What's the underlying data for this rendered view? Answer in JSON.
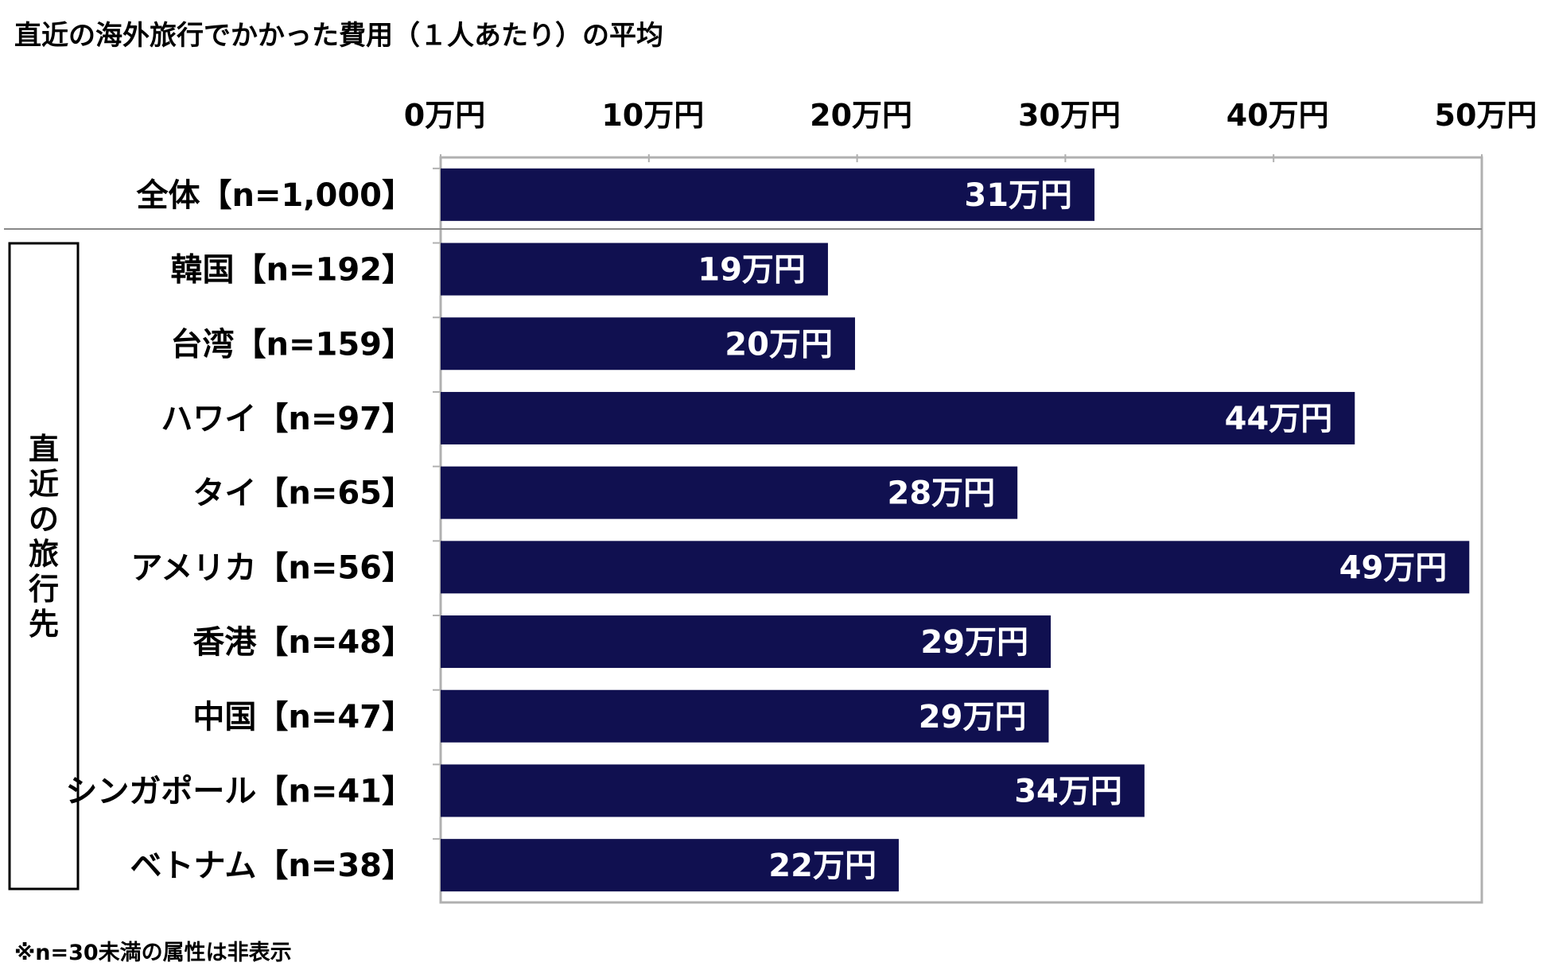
{
  "chart_data": {
    "type": "bar",
    "orientation": "horizontal",
    "title": "直近の海外旅行でかかった費用（１人あたり）の平均",
    "group_label": "直近の旅行先",
    "footnote": "※n=30未満の属性は非表示",
    "xlim": [
      0,
      50
    ],
    "x_ticks": [
      {
        "value": 0,
        "label": "0万円"
      },
      {
        "value": 10,
        "label": "10万円"
      },
      {
        "value": 20,
        "label": "20万円"
      },
      {
        "value": 30,
        "label": "30万円"
      },
      {
        "value": 40,
        "label": "40万円"
      },
      {
        "value": 50,
        "label": "50万円"
      }
    ],
    "categories": [
      "全体【n=1,000】",
      "韓国【n=192】",
      "台湾【n=159】",
      "ハワイ【n=97】",
      "タイ【n=65】",
      "アメリカ【n=56】",
      "香港【n=48】",
      "中国【n=47】",
      "シンガポール【n=41】",
      "ベトナム【n=38】"
    ],
    "values": [
      31.4,
      18.6,
      19.9,
      43.9,
      27.7,
      49.4,
      29.3,
      29.2,
      33.8,
      22.0
    ],
    "value_labels": [
      "31万円",
      "19万円",
      "20万円",
      "44万円",
      "28万円",
      "49万円",
      "29万円",
      "29万円",
      "34万円",
      "22万円"
    ],
    "bar_color": "#101050",
    "label_color": "#ffffff",
    "axis_color": "#b0b0b0"
  }
}
